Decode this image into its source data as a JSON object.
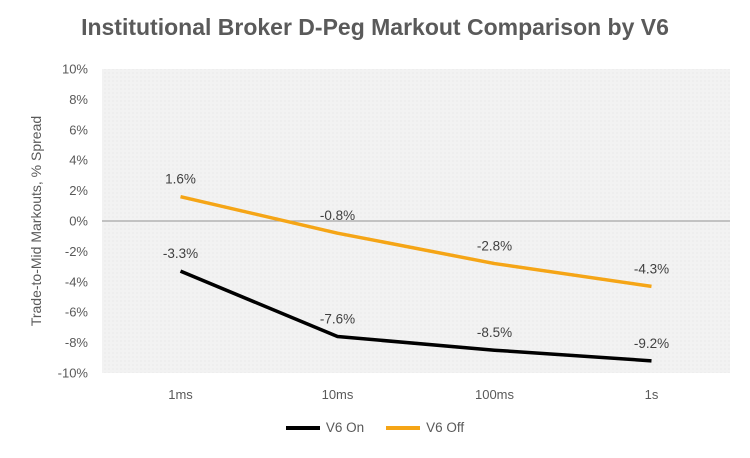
{
  "chart_data": {
    "type": "line",
    "title": "Institutional Broker D-Peg Markout Comparison by V6",
    "ylabel": "Trade-to-Mid Markouts, % Spread",
    "xlabel": "",
    "categories": [
      "1ms",
      "10ms",
      "100ms",
      "1s"
    ],
    "ylim": [
      -10,
      10
    ],
    "y_ticks": [
      "-10%",
      "-8%",
      "-6%",
      "-4%",
      "-2%",
      "0%",
      "2%",
      "4%",
      "6%",
      "8%",
      "10%"
    ],
    "series": [
      {
        "name": "V6 On",
        "color": "#000000",
        "values": [
          -3.3,
          -7.6,
          -8.5,
          -9.2
        ],
        "labels": [
          "-3.3%",
          "-7.6%",
          "-8.5%",
          "-9.2%"
        ]
      },
      {
        "name": "V6 Off",
        "color": "#f5a516",
        "values": [
          1.6,
          -0.8,
          -2.8,
          -4.3
        ],
        "labels": [
          "1.6%",
          "-0.8%",
          "-2.8%",
          "-4.3%"
        ]
      }
    ],
    "legend": "bottom",
    "grid": true
  }
}
